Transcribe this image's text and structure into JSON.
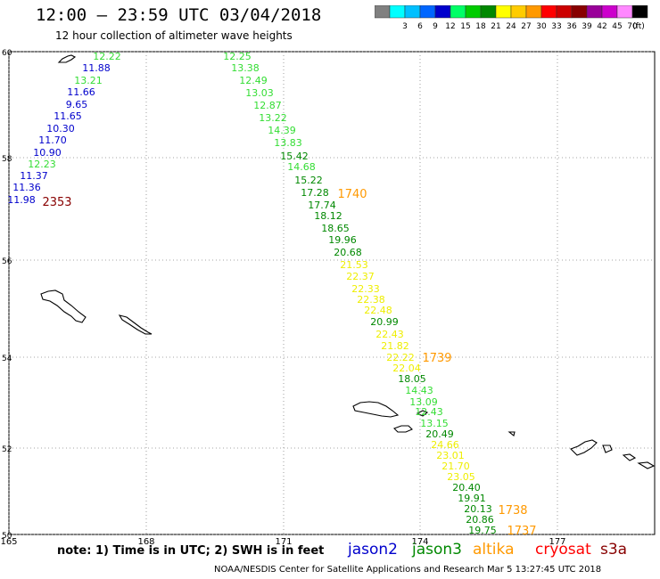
{
  "header": {
    "title": "12:00 — 23:59 UTC 03/04/2018",
    "subtitle": "12 hour collection of altimeter wave heights"
  },
  "color_scale": {
    "unit": "(ft)",
    "bins": [
      {
        "label": "",
        "color": "#808080"
      },
      {
        "label": "3",
        "color": "#00ffff"
      },
      {
        "label": "6",
        "color": "#00c0ff"
      },
      {
        "label": "9",
        "color": "#0066ff"
      },
      {
        "label": "12",
        "color": "#0000cc"
      },
      {
        "label": "15",
        "color": "#00ff66"
      },
      {
        "label": "18",
        "color": "#00cc00"
      },
      {
        "label": "21",
        "color": "#008800"
      },
      {
        "label": "24",
        "color": "#ffff00"
      },
      {
        "label": "27",
        "color": "#ffcc00"
      },
      {
        "label": "30",
        "color": "#ff9900"
      },
      {
        "label": "33",
        "color": "#ff0000"
      },
      {
        "label": "36",
        "color": "#cc0000"
      },
      {
        "label": "39",
        "color": "#880000"
      },
      {
        "label": "42",
        "color": "#990099"
      },
      {
        "label": "45",
        "color": "#cc00cc"
      },
      {
        "label": "70",
        "color": "#ff88ff"
      },
      {
        "label": "",
        "color": "#000000"
      }
    ]
  },
  "map": {
    "lon_labels": [
      "165",
      "168",
      "171",
      "174",
      "177"
    ],
    "lat_labels": [
      "60",
      "58",
      "56",
      "54",
      "52",
      "50"
    ],
    "track_west": [
      {
        "v": "12.22",
        "c": "#33dd33"
      },
      {
        "v": "11.88",
        "c": "#0000cc"
      },
      {
        "v": "13.21",
        "c": "#33dd33"
      },
      {
        "v": "11.66",
        "c": "#0000cc"
      },
      {
        "v": "9.65",
        "c": "#0000cc"
      },
      {
        "v": "11.65",
        "c": "#0000cc"
      },
      {
        "v": "10.30",
        "c": "#0000cc"
      },
      {
        "v": "11.70",
        "c": "#0000cc"
      },
      {
        "v": "10.90",
        "c": "#0000cc"
      },
      {
        "v": "12.23",
        "c": "#33dd33"
      },
      {
        "v": "11.37",
        "c": "#0000cc"
      },
      {
        "v": "11.36",
        "c": "#0000cc"
      },
      {
        "v": "11.98",
        "c": "#0000cc"
      }
    ],
    "track_east": [
      {
        "v": "12.25",
        "c": "#33dd33"
      },
      {
        "v": "13.38",
        "c": "#33dd33"
      },
      {
        "v": "12.49",
        "c": "#33dd33"
      },
      {
        "v": "13.03",
        "c": "#33dd33"
      },
      {
        "v": "12.87",
        "c": "#33dd33"
      },
      {
        "v": "13.22",
        "c": "#33dd33"
      },
      {
        "v": "14.39",
        "c": "#33dd33"
      },
      {
        "v": "13.83",
        "c": "#33dd33"
      },
      {
        "v": "15.42",
        "c": "#008800"
      },
      {
        "v": "14.68",
        "c": "#33dd33"
      },
      {
        "v": "15.22",
        "c": "#008800"
      },
      {
        "v": "17.28",
        "c": "#008800"
      },
      {
        "v": "17.74",
        "c": "#008800"
      },
      {
        "v": "18.12",
        "c": "#008800"
      },
      {
        "v": "18.65",
        "c": "#008800"
      },
      {
        "v": "19.96",
        "c": "#008800"
      },
      {
        "v": "20.68",
        "c": "#008800"
      },
      {
        "v": "21.53",
        "c": "#eeee00"
      },
      {
        "v": "22.37",
        "c": "#eeee00"
      },
      {
        "v": "22.33",
        "c": "#eeee00"
      },
      {
        "v": "22.38",
        "c": "#eeee00"
      },
      {
        "v": "22.48",
        "c": "#eeee00"
      },
      {
        "v": "20.99",
        "c": "#008800"
      },
      {
        "v": "22.43",
        "c": "#eeee00"
      },
      {
        "v": "21.82",
        "c": "#eeee00"
      },
      {
        "v": "22.22",
        "c": "#eeee00"
      },
      {
        "v": "22.04",
        "c": "#eeee00"
      },
      {
        "v": "18.05",
        "c": "#008800"
      },
      {
        "v": "14.43",
        "c": "#33dd33"
      },
      {
        "v": "13.09",
        "c": "#33dd33"
      },
      {
        "v": "12.43",
        "c": "#33dd33"
      },
      {
        "v": "13.15",
        "c": "#33dd33"
      },
      {
        "v": "20.49",
        "c": "#008800"
      },
      {
        "v": "24.66",
        "c": "#eeee00"
      },
      {
        "v": "23.01",
        "c": "#eeee00"
      },
      {
        "v": "21.70",
        "c": "#eeee00"
      },
      {
        "v": "23.05",
        "c": "#eeee00"
      },
      {
        "v": "20.40",
        "c": "#008800"
      },
      {
        "v": "19.91",
        "c": "#008800"
      },
      {
        "v": "20.13",
        "c": "#008800"
      },
      {
        "v": "20.86",
        "c": "#008800"
      },
      {
        "v": "19.75",
        "c": "#008800"
      }
    ],
    "time_markers": [
      {
        "v": "2353",
        "c": "#880000"
      },
      {
        "v": "1740",
        "c": "#ff9900"
      },
      {
        "v": "1739",
        "c": "#ff9900"
      },
      {
        "v": "1738",
        "c": "#ff9900"
      },
      {
        "v": "1737",
        "c": "#ff9900"
      }
    ]
  },
  "footer": {
    "note": "note: 1) Time is in UTC; 2) SWH is in feet",
    "satellites": [
      "jason2",
      "jason3",
      "altika",
      "cryosat",
      "s3a"
    ],
    "credit": "NOAA/NESDIS Center for Satellite Applications and Research   Mar  5 13:27:45 UTC 2018"
  }
}
